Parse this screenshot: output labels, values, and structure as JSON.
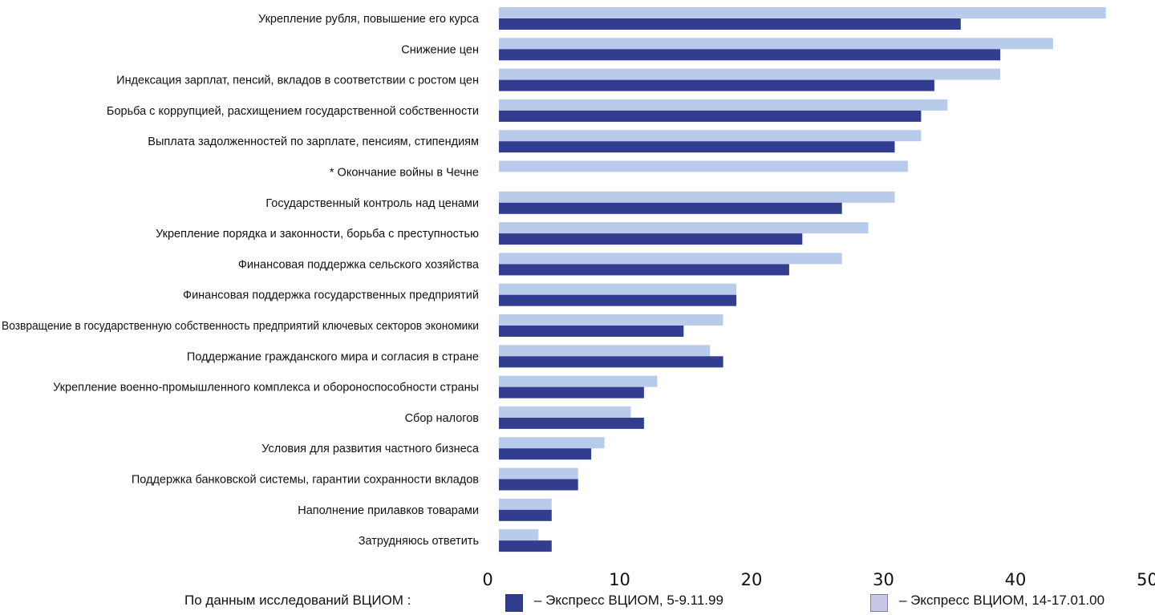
{
  "chart_data": {
    "type": "bar",
    "orientation": "horizontal",
    "categories": [
      "Укрепление рубля, повышение его курса",
      "Снижение цен",
      "Индексация зарплат, пенсий, вкладов в соответствии с ростом цен",
      "Борьба с коррупцией, расхищением государственной собственности",
      "Выплата задолженностей по зарплате, пенсиям, стипендиям",
      "* Окончание войны в Чечне",
      "Государственный контроль над ценами",
      "Укрепление порядка и законности, борьба с преступностью",
      "Финансовая поддержка сельского хозяйства",
      "Финансовая поддержка государственных предприятий",
      "Возвращение в государственную собственность предприятий ключевых секторов экономики",
      "Поддержание гражданского мира и согласия в стране",
      "Укрепление военно-промышленного комплекса и обороноспособности страны",
      "Сбор налогов",
      "Условия для развития частного бизнеса",
      "Поддержка банковской системы, гарантии сохранности вкладов",
      "Наполнение прилавков товарами",
      "Затрудняюсь ответить"
    ],
    "series": [
      {
        "name": "– Экспресс ВЦИОМ, 14-17.01.00",
        "color": "#b9cbea",
        "values": [
          46,
          42,
          38,
          34,
          32,
          31,
          30,
          28,
          26,
          18,
          17,
          16,
          12,
          10,
          8,
          6,
          4,
          3
        ]
      },
      {
        "name": "– Экспресс ВЦИОМ, 5-9.11.99",
        "color": "#333d90",
        "values": [
          35,
          38,
          33,
          32,
          30,
          null,
          26,
          23,
          22,
          18,
          14,
          17,
          11,
          11,
          7,
          6,
          4,
          4
        ]
      }
    ],
    "x_ticks": [
      "0",
      "10",
      "20",
      "30",
      "40",
      "50"
    ],
    "xlim": [
      0,
      50
    ],
    "grid": false,
    "legend_placement": "bottom"
  },
  "legend": {
    "source": "По данным исследований ВЦИОМ :",
    "item1": "– Экспресс ВЦИОМ, 5-9.11.99",
    "item2": "– Экспресс ВЦИОМ, 14-17.01.00"
  }
}
